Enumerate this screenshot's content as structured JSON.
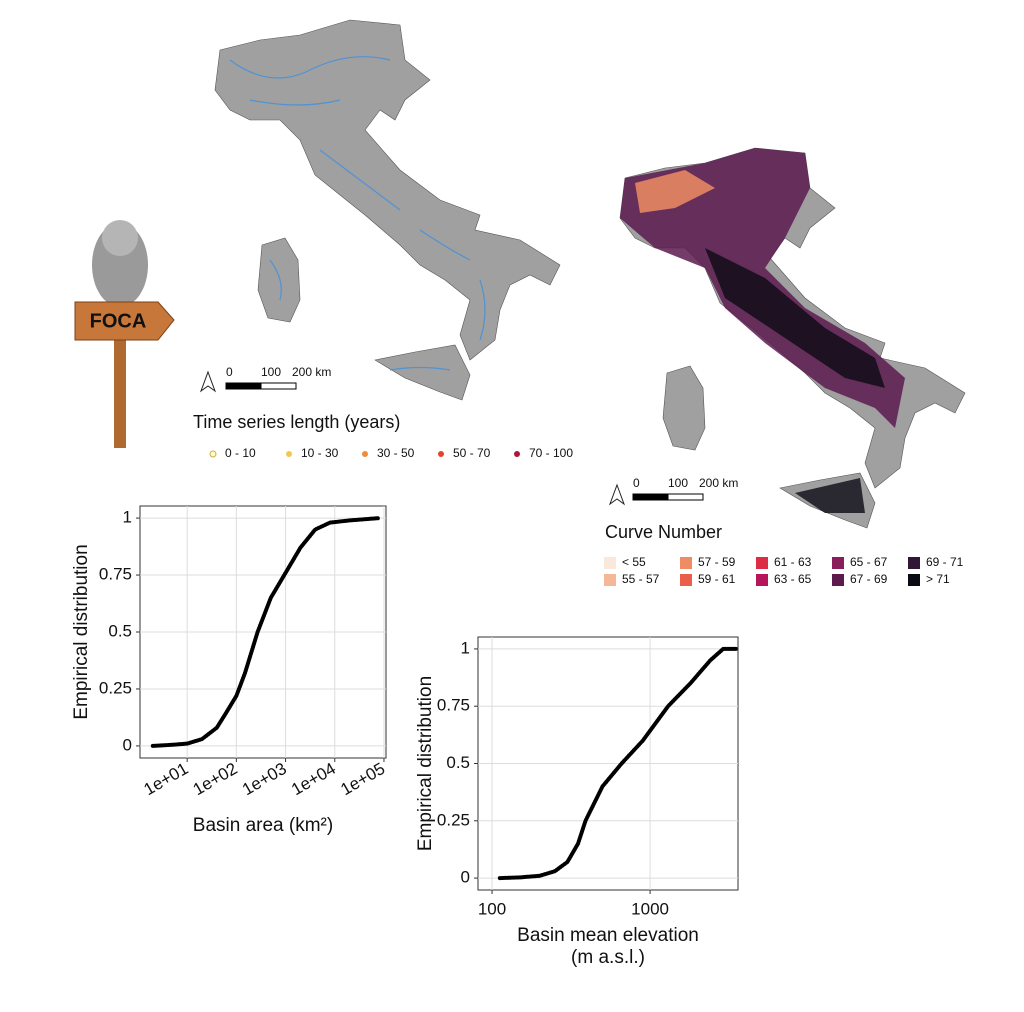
{
  "chart_data": [
    {
      "type": "line",
      "xlabel": [
        "Basin area (km²)"
      ],
      "ylabel": "Empirical distribution",
      "xscale": "log",
      "grid": true,
      "color": "#000000",
      "x": [
        2,
        5,
        10,
        20,
        40,
        60,
        100,
        150,
        270,
        500,
        1000,
        2000,
        4000,
        8000,
        20000,
        80000
      ],
      "values": [
        0,
        0.005,
        0.01,
        0.03,
        0.08,
        0.14,
        0.22,
        0.32,
        0.5,
        0.65,
        0.76,
        0.87,
        0.95,
        0.98,
        0.99,
        1
      ],
      "xlim": [
        1.1,
        110000
      ],
      "ylim": [
        -0.053,
        1.053
      ],
      "xticks": [
        {
          "value": 10,
          "label": "1e+01"
        },
        {
          "value": 100,
          "label": "1e+02"
        },
        {
          "value": 1000,
          "label": "1e+03"
        },
        {
          "value": 10000,
          "label": "1e+04"
        },
        {
          "value": 100000,
          "label": "1e+05"
        }
      ],
      "yticks": [
        0,
        0.25,
        0.5,
        0.75,
        1
      ]
    },
    {
      "type": "line",
      "xlabel": [
        "Basin mean elevation",
        "(m a.s.l.)"
      ],
      "ylabel": "Empirical distribution",
      "xscale": "log",
      "grid": true,
      "color": "#000000",
      "x": [
        112,
        150,
        200,
        250,
        300,
        350,
        390,
        500,
        660,
        900,
        1300,
        1800,
        2400,
        2900,
        3500
      ],
      "values": [
        0,
        0.003,
        0.01,
        0.03,
        0.07,
        0.15,
        0.25,
        0.4,
        0.5,
        0.6,
        0.75,
        0.85,
        0.95,
        1,
        1
      ],
      "xlim": [
        81.5,
        3600
      ],
      "ylim": [
        -0.052,
        1.052
      ],
      "xticks": [
        100,
        1000
      ],
      "yticks": [
        0,
        0.25,
        0.5,
        0.75,
        1
      ]
    }
  ],
  "maps": [
    {
      "legend_title": "Time series length (years)",
      "scale": [
        "0",
        "100",
        "200 km"
      ],
      "legend": [
        {
          "label": "0 - 10",
          "color": "#ffffcc"
        },
        {
          "label": "10 - 30",
          "color": "#f5c451"
        },
        {
          "label": "30 - 50",
          "color": "#f08a3c"
        },
        {
          "label": "50 - 70",
          "color": "#e0452a"
        },
        {
          "label": "70 - 100",
          "color": "#b0163a"
        }
      ]
    },
    {
      "legend_title": "Curve Number",
      "scale": [
        "0",
        "100",
        "200 km"
      ],
      "legend": [
        {
          "label": "< 55",
          "color": "#fbe8dc"
        },
        {
          "label": "55 - 57",
          "color": "#f4b898"
        },
        {
          "label": "57 - 59",
          "color": "#ef8c64"
        },
        {
          "label": "59 - 61",
          "color": "#ea5f4a"
        },
        {
          "label": "61 - 63",
          "color": "#dd2d45"
        },
        {
          "label": "63 - 65",
          "color": "#b5155a"
        },
        {
          "label": "65 - 67",
          "color": "#8a1d5c"
        },
        {
          "label": "67 - 69",
          "color": "#5c1a4f"
        },
        {
          "label": "69 - 71",
          "color": "#321636"
        },
        {
          "label": "> 71",
          "color": "#0d0a14"
        }
      ]
    }
  ],
  "illustration": {
    "sign_text": "FOCA"
  }
}
